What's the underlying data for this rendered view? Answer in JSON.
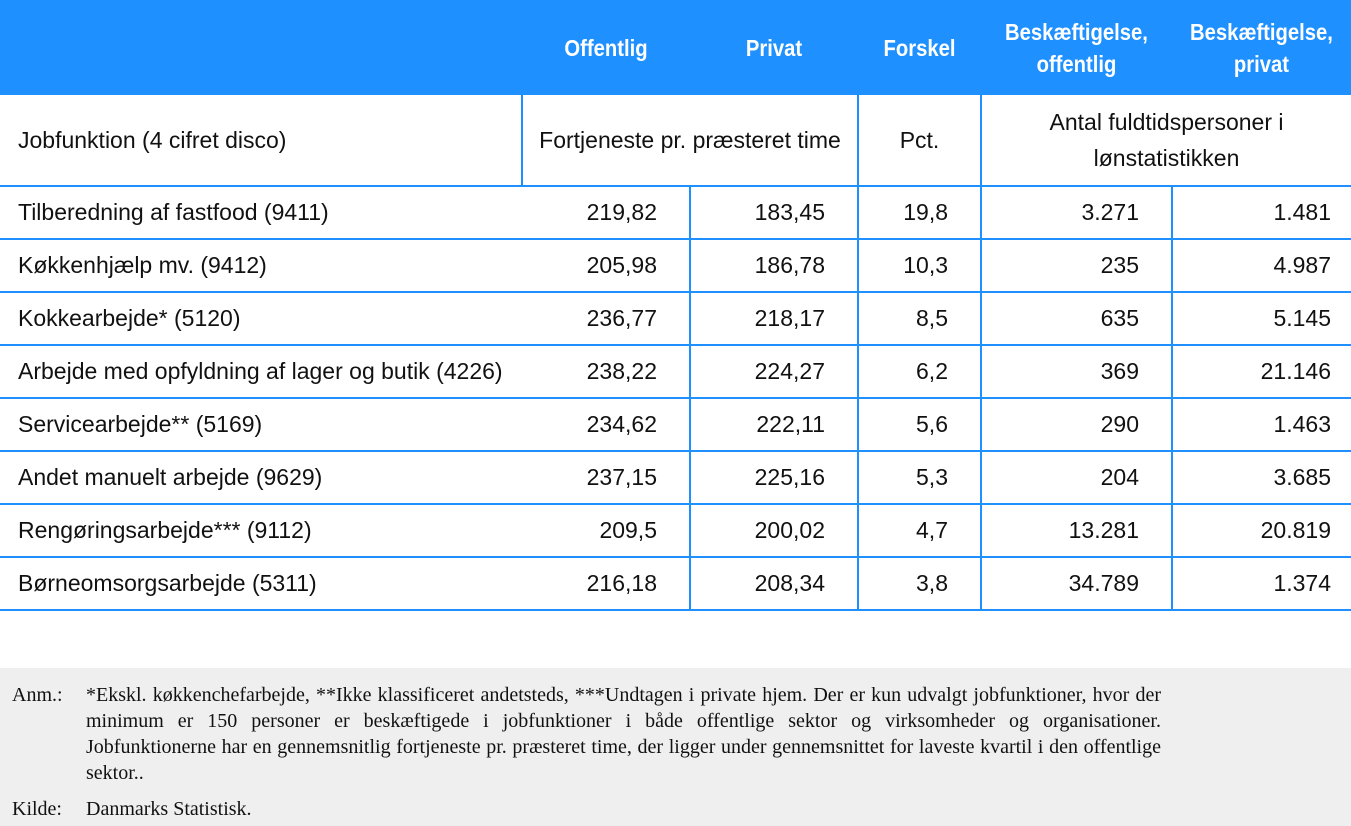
{
  "table": {
    "header": [
      "",
      "Offentlig",
      "Privat",
      "Forskel",
      "Beskæftigelse, offentlig",
      "Beskæftigelse, privat"
    ],
    "subheader": {
      "label": "Jobfunktion (4 cifret disco)",
      "earnings": "Fortjeneste pr. præsteret time",
      "pct": "Pct.",
      "employment": "Antal fuldtidspersoner i lønstatistikken"
    },
    "rows": [
      [
        "Tilberedning af fastfood (9411)",
        "219,82",
        "183,45",
        "19,8",
        "3.271",
        "1.481"
      ],
      [
        "Køkkenhjælp mv. (9412)",
        "205,98",
        "186,78",
        "10,3",
        "235",
        "4.987"
      ],
      [
        "Kokkearbejde* (5120)",
        "236,77",
        "218,17",
        "8,5",
        "635",
        "5.145"
      ],
      [
        "Arbejde med opfyldning af lager og butik (4226)",
        "238,22",
        "224,27",
        "6,2",
        "369",
        "21.146"
      ],
      [
        "Servicearbejde** (5169)",
        "234,62",
        "222,11",
        "5,6",
        "290",
        "1.463"
      ],
      [
        "Andet manuelt arbejde (9629)",
        "237,15",
        "225,16",
        "5,3",
        "204",
        "3.685"
      ],
      [
        "Rengøringsarbejde*** (9112)",
        "209,5",
        "200,02",
        "4,7",
        "13.281",
        "20.819"
      ],
      [
        "Børneomsorgsarbejde (5311)",
        "216,18",
        "208,34",
        "3,8",
        "34.789",
        "1.374"
      ]
    ]
  },
  "notes": {
    "anm_label": "Anm.:",
    "anm_text": "*Ekskl. køkkenchefarbejde, **Ikke klassificeret andetsteds, ***Undtagen i private hjem. Der er kun udvalgt jobfunktioner, hvor der minimum er 150 personer er beskæftigede i jobfunktioner i både offentlige sektor og virksomheder og organisationer. Jobfunktionerne har en gennemsnitlig fortjeneste pr. præsteret time, der ligger under gennemsnittet for laveste kvartil i den offentlige sektor..",
    "kilde_label": "Kilde:",
    "kilde_text": "Danmarks Statistisk."
  },
  "colors": {
    "accent": "#1e90ff",
    "note_bg": "#efefef"
  }
}
